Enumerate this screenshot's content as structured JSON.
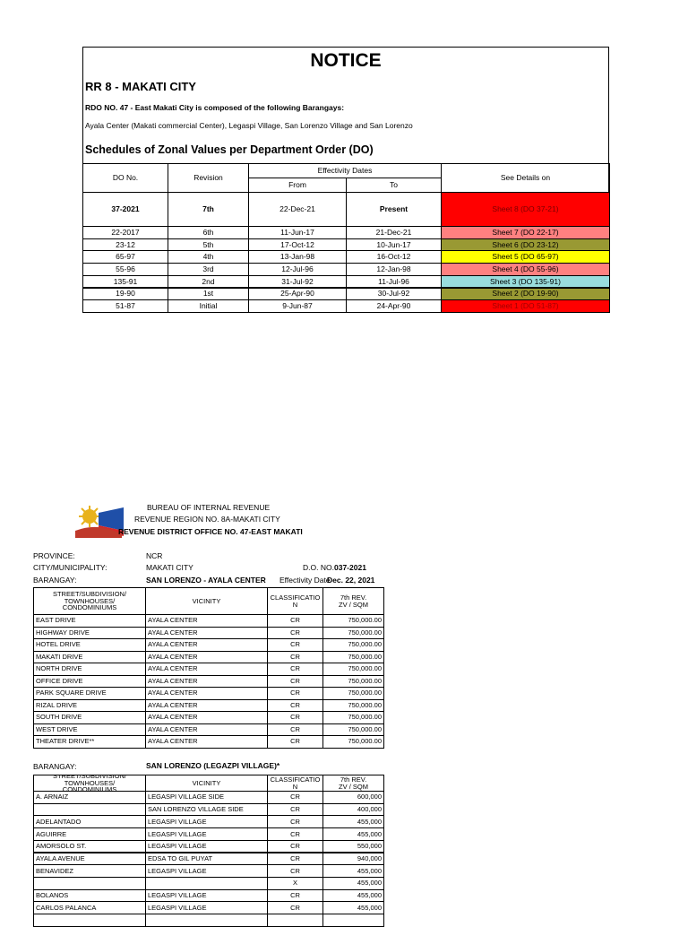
{
  "notice": {
    "title": "NOTICE",
    "region": "RR 8 - MAKATI CITY",
    "rdo_line": "RDO NO. 47 - East Makati City is composed of the following Barangays:",
    "barangays_line": "Ayala Center (Makati commercial Center), Legaspi Village, San Lorenzo Village and San Lorenzo",
    "schedule_title": "Schedules of Zonal Values per Department Order (DO)",
    "table": {
      "header": {
        "do_no": "DO No.",
        "revision": "Revision",
        "effectivity": "Effectivity Dates",
        "from": "From",
        "to": "To",
        "details": "See Details on"
      },
      "current": {
        "cells": [
          "37-2021",
          "7th",
          "22-Dec-21",
          "Present",
          "Sheet 8 (DO 37-21)"
        ],
        "color": "#ff0000"
      },
      "rows": [
        {
          "cells": [
            "22-2017",
            "6th",
            "11-Jun-17",
            "21-Dec-21",
            "Sheet 7 (DO 22-17)"
          ],
          "color": "#ff8080"
        },
        {
          "cells": [
            "23-12",
            "5th",
            "17-Oct-12",
            "10-Jun-17",
            "Sheet 6 (DO 23-12)"
          ],
          "color": "#999933"
        },
        {
          "cells": [
            "65-97",
            "4th",
            "13-Jan-98",
            "16-Oct-12",
            "Sheet 5 (DO 65-97)"
          ],
          "color": "#ffff00"
        },
        {
          "cells": [
            "55-96",
            "3rd",
            "12-Jul-96",
            "12-Jan-98",
            "Sheet 4 (DO 55-96)"
          ],
          "color": "#ff8080"
        },
        {
          "cells": [
            "135-91",
            "2nd",
            "31-Jul-92",
            "11-Jul-96",
            "Sheet 3 (DO 135-91)"
          ],
          "color": "#99dddd"
        },
        {
          "cells": [
            "19-90",
            "1st",
            "25-Apr-90",
            "30-Jul-92",
            "Sheet 2 (DO 19-90)"
          ],
          "color": "#999933"
        },
        {
          "cells": [
            "51-87",
            "Initial",
            "9-Jun-87",
            "24-Apr-90",
            "Sheet 1 (DO 51-87)"
          ],
          "color": "#ff0000"
        }
      ]
    }
  },
  "bir": {
    "agency": [
      "BUREAU OF INTERNAL REVENUE",
      "REVENUE REGION NO. 8A-MAKATI CITY",
      "REVENUE DISTRICT OFFICE NO. 47-EAST MAKATI"
    ],
    "province_label": "PROVINCE:",
    "province": "NCR",
    "city_label": "CITY/MUNICIPALITY:",
    "city": "MAKATI CITY",
    "do_label": "D.O. NO.",
    "do_no": "037-2021",
    "barangay_label": "BARANGAY:",
    "barangay": "SAN LORENZO -  AYALA CENTER",
    "effectivity_label": "Effectivity Date",
    "effectivity_date": "Dec. 22, 2021",
    "table1": {
      "header": [
        "STREET/SUBDIVISION/\nTOWNHOUSES/\nCONDOMINIUMS",
        "VICINITY",
        "CLASSIFICATION",
        "7th REV.\nZV / SQM"
      ],
      "rows": [
        [
          "EAST DRIVE",
          "AYALA CENTER",
          "CR",
          "750,000.00"
        ],
        [
          "HIGHWAY DRIVE",
          "AYALA CENTER",
          "CR",
          "750,000.00"
        ],
        [
          "HOTEL DRIVE",
          "AYALA CENTER",
          "CR",
          "750,000.00"
        ],
        [
          "MAKATI DRIVE",
          "AYALA CENTER",
          "CR",
          "750,000.00"
        ],
        [
          "NORTH DRIVE",
          "AYALA CENTER",
          "CR",
          "750,000.00"
        ],
        [
          "OFFICE DRIVE",
          "AYALA CENTER",
          "CR",
          "750,000.00"
        ],
        [
          "PARK SQUARE DRIVE",
          "AYALA CENTER",
          "CR",
          "750,000.00"
        ],
        [
          "RIZAL DRIVE",
          "AYALA CENTER",
          "CR",
          "750,000.00"
        ],
        [
          "SOUTH DRIVE",
          "AYALA CENTER",
          "CR",
          "750,000.00"
        ],
        [
          "WEST DRIVE",
          "AYALA CENTER",
          "CR",
          "750,000.00"
        ],
        [
          "THEATER DRIVE**",
          "AYALA CENTER",
          "CR",
          "750,000.00"
        ]
      ]
    },
    "barangay2_label": "BARANGAY:",
    "barangay2": "SAN LORENZO (LEGAZPI VILLAGE)*",
    "table2": {
      "header": [
        "STREET/SUBDIVISION/\nTOWNHOUSES/\nCONDOMINIUMS",
        "VICINITY",
        "CLASSIFICATION",
        "7th REV.\nZV / SQM"
      ],
      "rows": [
        [
          "A. ARNAIZ",
          "LEGASPI VILLAGE SIDE",
          "CR",
          "600,000"
        ],
        [
          null,
          "SAN LORENZO VILLAGE SIDE",
          "CR",
          "400,000"
        ],
        [
          "ADELANTADO",
          "LEGASPI VILLAGE",
          "CR",
          "455,000"
        ],
        [
          "AGUIRRE",
          "LEGASPI VILLAGE",
          "CR",
          "455,000"
        ],
        [
          "AMORSOLO ST.",
          "LEGASPI VILLAGE",
          "CR",
          "550,000"
        ],
        [
          "AYALA AVENUE",
          "EDSA TO GIL PUYAT",
          "CR",
          "940,000"
        ],
        [
          "BENAVIDEZ",
          "LEGASPI VILLAGE",
          "CR",
          "455,000"
        ],
        [
          null,
          null,
          "X",
          "455,000"
        ],
        [
          "BOLANOS",
          "LEGASPI VILLAGE",
          "CR",
          "455,000"
        ],
        [
          "CARLOS PALANCA",
          "LEGASPI VILLAGE",
          "CR",
          "455,000"
        ]
      ]
    }
  }
}
